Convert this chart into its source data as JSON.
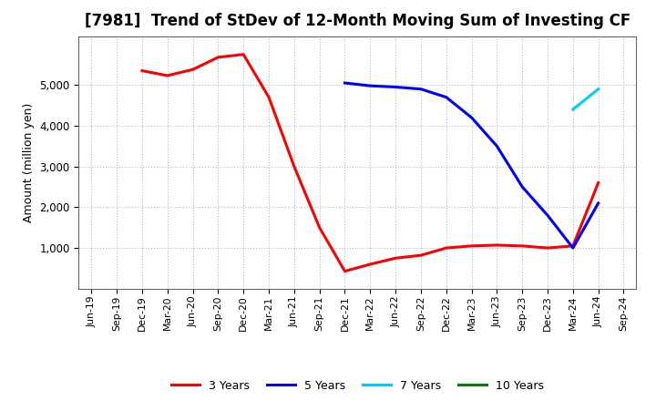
{
  "title": "[7981]  Trend of StDev of 12-Month Moving Sum of Investing CF",
  "ylabel": "Amount (million yen)",
  "background_color": "#ffffff",
  "grid_color": "#bbbbbb",
  "ylim": [
    0,
    6200
  ],
  "yticks": [
    1000,
    2000,
    3000,
    4000,
    5000
  ],
  "series": {
    "3 Years": {
      "color": "#ff0000",
      "data": [
        [
          "Jun-19",
          null
        ],
        [
          "Sep-19",
          null
        ],
        [
          "Dec-19",
          5350
        ],
        [
          "Mar-20",
          5230
        ],
        [
          "Jun-20",
          5380
        ],
        [
          "Sep-20",
          5680
        ],
        [
          "Dec-20",
          5750
        ],
        [
          "Mar-21",
          4700
        ],
        [
          "Jun-21",
          3000
        ],
        [
          "Sep-21",
          1500
        ],
        [
          "Dec-21",
          430
        ],
        [
          "Mar-22",
          600
        ],
        [
          "Jun-22",
          750
        ],
        [
          "Sep-22",
          820
        ],
        [
          "Dec-22",
          1000
        ],
        [
          "Mar-23",
          1050
        ],
        [
          "Jun-23",
          1070
        ],
        [
          "Sep-23",
          1050
        ],
        [
          "Dec-23",
          1000
        ],
        [
          "Mar-24",
          1050
        ],
        [
          "Jun-24",
          2600
        ],
        [
          "Sep-24",
          null
        ]
      ]
    },
    "5 Years": {
      "color": "#0000ff",
      "data": [
        [
          "Jun-19",
          null
        ],
        [
          "Sep-19",
          null
        ],
        [
          "Dec-19",
          null
        ],
        [
          "Mar-20",
          null
        ],
        [
          "Jun-20",
          null
        ],
        [
          "Sep-20",
          null
        ],
        [
          "Dec-20",
          null
        ],
        [
          "Mar-21",
          null
        ],
        [
          "Jun-21",
          null
        ],
        [
          "Sep-21",
          null
        ],
        [
          "Dec-21",
          5050
        ],
        [
          "Mar-22",
          4980
        ],
        [
          "Jun-22",
          4950
        ],
        [
          "Sep-22",
          4900
        ],
        [
          "Dec-22",
          4700
        ],
        [
          "Mar-23",
          4200
        ],
        [
          "Jun-23",
          3500
        ],
        [
          "Sep-23",
          2500
        ],
        [
          "Dec-23",
          1800
        ],
        [
          "Mar-24",
          1000
        ],
        [
          "Jun-24",
          2100
        ],
        [
          "Sep-24",
          null
        ]
      ]
    },
    "7 Years": {
      "color": "#00ccff",
      "data": [
        [
          "Jun-19",
          null
        ],
        [
          "Sep-19",
          null
        ],
        [
          "Dec-19",
          null
        ],
        [
          "Mar-20",
          null
        ],
        [
          "Jun-20",
          null
        ],
        [
          "Sep-20",
          null
        ],
        [
          "Dec-20",
          null
        ],
        [
          "Mar-21",
          null
        ],
        [
          "Jun-21",
          null
        ],
        [
          "Sep-21",
          null
        ],
        [
          "Dec-21",
          null
        ],
        [
          "Mar-22",
          null
        ],
        [
          "Jun-22",
          null
        ],
        [
          "Sep-22",
          null
        ],
        [
          "Dec-22",
          null
        ],
        [
          "Mar-23",
          null
        ],
        [
          "Jun-23",
          null
        ],
        [
          "Sep-23",
          null
        ],
        [
          "Dec-23",
          null
        ],
        [
          "Mar-24",
          4400
        ],
        [
          "Jun-24",
          4900
        ],
        [
          "Sep-24",
          null
        ]
      ]
    },
    "10 Years": {
      "color": "#008000",
      "data": [
        [
          "Jun-19",
          null
        ],
        [
          "Sep-19",
          null
        ],
        [
          "Dec-19",
          null
        ],
        [
          "Mar-20",
          null
        ],
        [
          "Jun-20",
          null
        ],
        [
          "Sep-20",
          null
        ],
        [
          "Dec-20",
          null
        ],
        [
          "Mar-21",
          null
        ],
        [
          "Jun-21",
          null
        ],
        [
          "Sep-21",
          null
        ],
        [
          "Dec-21",
          null
        ],
        [
          "Mar-22",
          null
        ],
        [
          "Jun-22",
          null
        ],
        [
          "Sep-22",
          null
        ],
        [
          "Dec-22",
          null
        ],
        [
          "Mar-23",
          null
        ],
        [
          "Jun-23",
          null
        ],
        [
          "Sep-23",
          null
        ],
        [
          "Dec-23",
          null
        ],
        [
          "Mar-24",
          null
        ],
        [
          "Jun-24",
          null
        ],
        [
          "Sep-24",
          null
        ]
      ]
    }
  },
  "xtick_labels": [
    "Jun-19",
    "Sep-19",
    "Dec-19",
    "Mar-20",
    "Jun-20",
    "Sep-20",
    "Dec-20",
    "Mar-21",
    "Jun-21",
    "Sep-21",
    "Dec-21",
    "Mar-22",
    "Jun-22",
    "Sep-22",
    "Dec-22",
    "Mar-23",
    "Jun-23",
    "Sep-23",
    "Dec-23",
    "Mar-24",
    "Jun-24",
    "Sep-24"
  ],
  "legend_entries": [
    "3 Years",
    "5 Years",
    "7 Years",
    "10 Years"
  ],
  "legend_colors": [
    "#ff0000",
    "#0000ff",
    "#00ccff",
    "#008000"
  ],
  "title_fontsize": 12,
  "linewidth": 2.2
}
